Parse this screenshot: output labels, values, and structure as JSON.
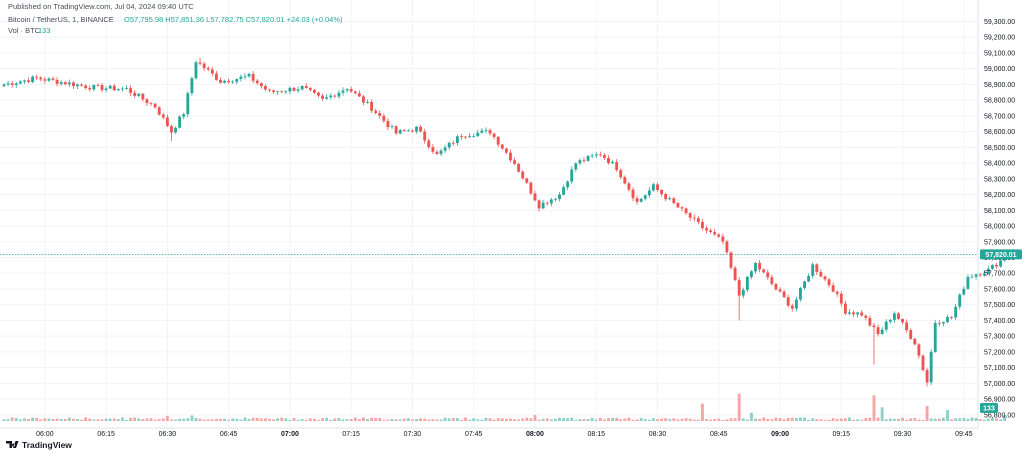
{
  "header": {
    "published": "Published on TradingView.com, Jul 04, 2024 09:40 UTC",
    "symbol": "Bitcoin / TetherUS, 1, BINANCE",
    "ohlc": "O57,795.98  H57,851.36  L57,782.75  C57,820.01  +24.03 (+0.04%)",
    "volume_label": "Vol · BTC",
    "volume_value": "133"
  },
  "footer": {
    "logo_text": "TradingView"
  },
  "colors": {
    "up": "#26a69a",
    "down": "#ef5350",
    "vol_up": "#8fd0c6",
    "vol_down": "#f5a6a4",
    "grid": "#f0f3fa",
    "axis_text": "#131722",
    "last_price_line": "#26a69a"
  },
  "chart_data": {
    "type": "candlestick",
    "title": "Bitcoin / TetherUS, 1, BINANCE",
    "interval_minutes": 1,
    "x_range": [
      "05:50",
      "09:47"
    ],
    "ylim": [
      56780,
      59360
    ],
    "y_ticks": [
      56800,
      56900,
      57000,
      57100,
      57200,
      57300,
      57400,
      57500,
      57600,
      57700,
      57800,
      57900,
      58000,
      58100,
      58200,
      58300,
      58400,
      58500,
      58600,
      58700,
      58800,
      58900,
      59000,
      59100,
      59200,
      59300
    ],
    "y_tick_labels": [
      "56,800.00",
      "56,900.00",
      "57,000.00",
      "57,100.00",
      "57,200.00",
      "57,300.00",
      "57,400.00",
      "57,500.00",
      "57,600.00",
      "57,700.00",
      "57,800.00",
      "57,900.00",
      "58,000.00",
      "58,100.00",
      "58,200.00",
      "58,300.00",
      "58,400.00",
      "58,500.00",
      "58,600.00",
      "58,700.00",
      "58,800.00",
      "58,900.00",
      "59,000.00",
      "59,100.00",
      "59,200.00",
      "59,300.00"
    ],
    "x_ticks": [
      {
        "time": "06:00",
        "bold": false
      },
      {
        "time": "06:15",
        "bold": false
      },
      {
        "time": "06:30",
        "bold": false
      },
      {
        "time": "06:45",
        "bold": false
      },
      {
        "time": "07:00",
        "bold": true
      },
      {
        "time": "07:15",
        "bold": false
      },
      {
        "time": "07:30",
        "bold": false
      },
      {
        "time": "07:45",
        "bold": false
      },
      {
        "time": "08:00",
        "bold": true
      },
      {
        "time": "08:15",
        "bold": false
      },
      {
        "time": "08:30",
        "bold": false
      },
      {
        "time": "08:45",
        "bold": false
      },
      {
        "time": "09:00",
        "bold": true
      },
      {
        "time": "09:15",
        "bold": false
      },
      {
        "time": "09:30",
        "bold": false
      },
      {
        "time": "09:45",
        "bold": false
      }
    ],
    "last_price": 57820.01,
    "last_price_label": "57,820.01",
    "last_volume": 133,
    "last_volume_label": "133",
    "volume_max": 700,
    "path_keyframes": [
      {
        "t": 0,
        "p": 58900
      },
      {
        "t": 8,
        "p": 58940
      },
      {
        "t": 22,
        "p": 58880
      },
      {
        "t": 30,
        "p": 58870
      },
      {
        "t": 37,
        "p": 58760
      },
      {
        "t": 41,
        "p": 58600
      },
      {
        "t": 44,
        "p": 58720
      },
      {
        "t": 47,
        "p": 59050
      },
      {
        "t": 53,
        "p": 58920
      },
      {
        "t": 60,
        "p": 58950
      },
      {
        "t": 65,
        "p": 58850
      },
      {
        "t": 73,
        "p": 58880
      },
      {
        "t": 78,
        "p": 58800
      },
      {
        "t": 84,
        "p": 58880
      },
      {
        "t": 90,
        "p": 58750
      },
      {
        "t": 96,
        "p": 58590
      },
      {
        "t": 101,
        "p": 58620
      },
      {
        "t": 106,
        "p": 58450
      },
      {
        "t": 112,
        "p": 58580
      },
      {
        "t": 119,
        "p": 58600
      },
      {
        "t": 125,
        "p": 58400
      },
      {
        "t": 131,
        "p": 58130
      },
      {
        "t": 136,
        "p": 58200
      },
      {
        "t": 140,
        "p": 58400
      },
      {
        "t": 146,
        "p": 58460
      },
      {
        "t": 150,
        "p": 58370
      },
      {
        "t": 155,
        "p": 58150
      },
      {
        "t": 159,
        "p": 58250
      },
      {
        "t": 164,
        "p": 58140
      },
      {
        "t": 171,
        "p": 57990
      },
      {
        "t": 176,
        "p": 57900
      },
      {
        "t": 180,
        "p": 57560
      },
      {
        "t": 184,
        "p": 57760
      },
      {
        "t": 189,
        "p": 57600
      },
      {
        "t": 193,
        "p": 57480
      },
      {
        "t": 198,
        "p": 57750
      },
      {
        "t": 203,
        "p": 57600
      },
      {
        "t": 206,
        "p": 57460
      },
      {
        "t": 210,
        "p": 57440
      },
      {
        "t": 214,
        "p": 57310
      },
      {
        "t": 218,
        "p": 57450
      },
      {
        "t": 223,
        "p": 57260
      },
      {
        "t": 226,
        "p": 57010
      },
      {
        "t": 228,
        "p": 57390
      },
      {
        "t": 232,
        "p": 57420
      },
      {
        "t": 236,
        "p": 57680
      },
      {
        "t": 241,
        "p": 57720
      },
      {
        "t": 244,
        "p": 57780
      },
      {
        "t": 245,
        "p": 57820
      }
    ],
    "wick_spikes": [
      {
        "t": 180,
        "low": 57400
      },
      {
        "t": 213,
        "low": 57120
      },
      {
        "t": 226,
        "low": 56980
      },
      {
        "t": 41,
        "low": 58540
      },
      {
        "t": 48,
        "high": 59070
      }
    ],
    "volume_spikes": [
      {
        "t": 171,
        "v": 380
      },
      {
        "t": 180,
        "v": 600
      },
      {
        "t": 183,
        "v": 180
      },
      {
        "t": 213,
        "v": 560
      },
      {
        "t": 215,
        "v": 300
      },
      {
        "t": 226,
        "v": 330
      },
      {
        "t": 231,
        "v": 240
      },
      {
        "t": 46,
        "v": 120
      },
      {
        "t": 40,
        "v": 110
      },
      {
        "t": 130,
        "v": 130
      }
    ]
  }
}
